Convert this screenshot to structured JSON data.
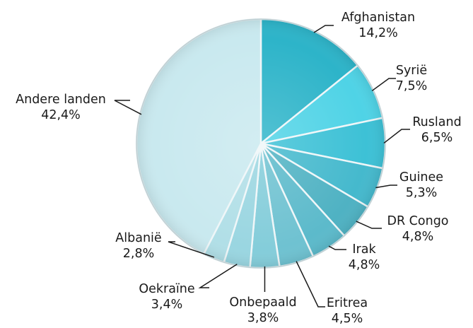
{
  "chart_data": {
    "type": "pie",
    "title": "",
    "slices": [
      {
        "label": "Afghanistan",
        "value_text": "14,2%",
        "value": 14.2,
        "color": "#2db4c9"
      },
      {
        "label": "Syrië",
        "value_text": "7,5%",
        "value": 7.5,
        "color": "#4fd3e6"
      },
      {
        "label": "Rusland",
        "value_text": "6,5%",
        "value": 6.5,
        "color": "#3dc1d6"
      },
      {
        "label": "Guinee",
        "value_text": "5,3%",
        "value": 5.3,
        "color": "#45b9cd"
      },
      {
        "label": "DR Congo",
        "value_text": "4,8%",
        "value": 4.8,
        "color": "#4fb2c3"
      },
      {
        "label": "Irak",
        "value_text": "4,8%",
        "value": 4.8,
        "color": "#5cbacb"
      },
      {
        "label": "Eritrea",
        "value_text": "4,5%",
        "value": 4.5,
        "color": "#6fc2d1"
      },
      {
        "label": "Onbepaald",
        "value_text": "3,8%",
        "value": 3.8,
        "color": "#84cdda"
      },
      {
        "label": "Oekraïne",
        "value_text": "3,4%",
        "value": 3.4,
        "color": "#9ad6e1"
      },
      {
        "label": "Albanië",
        "value_text": "2,8%",
        "value": 2.8,
        "color": "#b1dfe7"
      },
      {
        "label": "Andere landen",
        "value_text": "42,4%",
        "value": 42.4,
        "color": "#c9e9ef"
      }
    ],
    "start_angle_deg": 0,
    "direction": "clockwise",
    "legend": "none",
    "data_labels": "outside-with-leader-lines"
  }
}
